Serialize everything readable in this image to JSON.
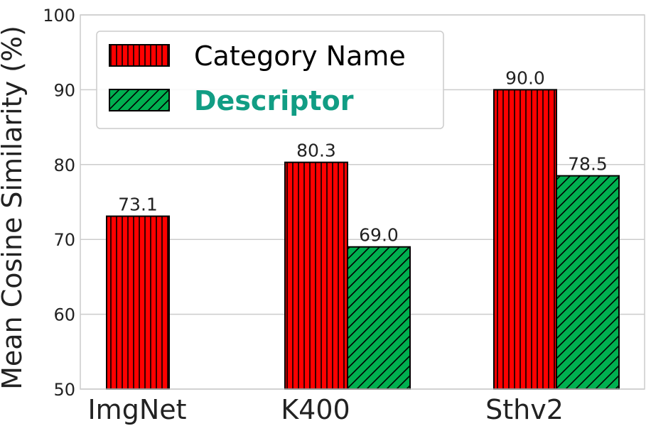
{
  "chart_data": {
    "type": "bar",
    "categories": [
      "ImgNet",
      "K400",
      "Sthv2"
    ],
    "series": [
      {
        "name": "Category Name",
        "values": [
          73.1,
          80.3,
          90.0
        ],
        "color": "#ff0000",
        "hatch": "vertical"
      },
      {
        "name": "Descriptor",
        "values": [
          null,
          69.0,
          78.5
        ],
        "color": "#00b050",
        "hatch": "diagonal"
      }
    ],
    "data_labels": [
      [
        "73.1",
        "80.3",
        "90.0"
      ],
      [
        "",
        "69.0",
        "78.5"
      ]
    ],
    "ylabel": "Mean Cosine Similarity (%)",
    "ylim": [
      50,
      100
    ],
    "yticks": [
      50,
      60,
      70,
      80,
      90,
      100
    ],
    "grid": true,
    "legend_position": "top-left",
    "legend_colors": {
      "Category Name": "#000000",
      "Descriptor": "#119d84"
    }
  }
}
